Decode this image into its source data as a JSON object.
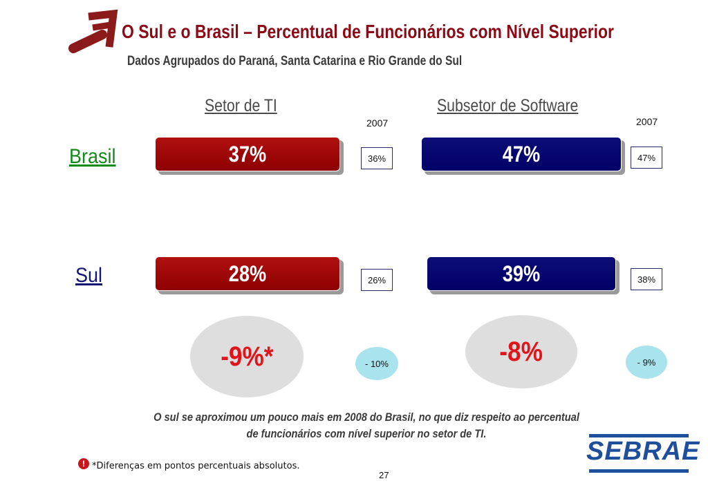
{
  "header": {
    "title": "O Sul e o Brasil – Percentual de Funcionários com Nível Superior",
    "subtitle": "Dados Agrupados do Paraná, Santa Catarina e Rio Grande do Sul"
  },
  "columns": {
    "ti": {
      "title": "Setor de TI",
      "year": "2007"
    },
    "software": {
      "title": "Subsetor de Software",
      "year": "2007"
    }
  },
  "rows": {
    "brasil": {
      "label": "Brasil",
      "label_color": "#118a1c",
      "ti_value": "37%",
      "ti_2007": "36%",
      "software_value": "47%",
      "software_2007": "47%"
    },
    "sul": {
      "label": "Sul",
      "label_color": "#151575",
      "ti_value": "28%",
      "ti_2007": "26%",
      "software_value": "39%",
      "software_2007": "38%"
    }
  },
  "differences": {
    "ti": "-9%*",
    "ti_2007": "- 10%",
    "software": "-8%",
    "software_2007": "- 9%"
  },
  "colors": {
    "ti_bar": "#9e0808",
    "software_bar": "#00006b",
    "difference": "#e0141b"
  },
  "conclusion": "O sul se aproximou um pouco mais em 2008 do Brasil, no que diz respeito ao percentual de funcionários com nível superior no setor de TI.",
  "footnote": {
    "icon": "warning-icon",
    "symbol": "!",
    "text": "*Diferenças em pontos percentuais absolutos."
  },
  "page_number": "27",
  "logo": {
    "text": "SEBRAE"
  },
  "decor": {
    "icon": "arrow-icon"
  }
}
